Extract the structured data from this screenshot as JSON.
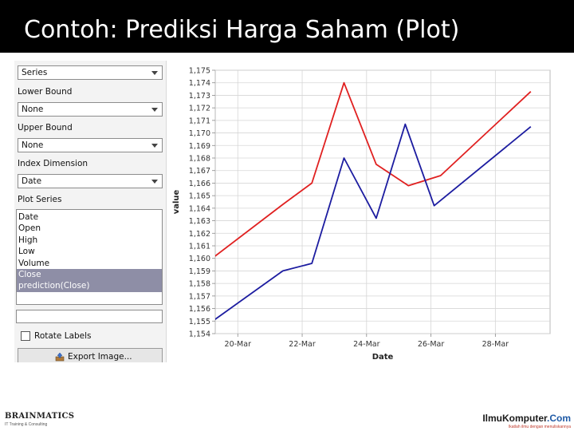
{
  "slide": {
    "title": "Contoh: Prediksi Harga Saham (Plot)"
  },
  "panel": {
    "top_dropdown": {
      "value": "Series"
    },
    "lower_bound": {
      "label": "Lower Bound",
      "value": "None"
    },
    "upper_bound": {
      "label": "Upper Bound",
      "value": "None"
    },
    "index_dimension": {
      "label": "Index Dimension",
      "value": "Date"
    },
    "plot_series": {
      "label": "Plot Series",
      "items": [
        "Date",
        "Open",
        "High",
        "Low",
        "Volume",
        "Close",
        "prediction(Close)"
      ],
      "selected": [
        5,
        6
      ]
    },
    "rotate_labels": {
      "label": "Rotate Labels",
      "checked": false
    },
    "export_button": {
      "label": "Export Image..."
    }
  },
  "chart_data": {
    "type": "line",
    "xlabel": "Date",
    "ylabel": "value",
    "x_ticks": [
      "20-Mar",
      "22-Mar",
      "24-Mar",
      "26-Mar",
      "28-Mar"
    ],
    "y_ticks": [
      "1,154",
      "1,155",
      "1,156",
      "1,157",
      "1,158",
      "1,159",
      "1,160",
      "1,161",
      "1,162",
      "1,163",
      "1,164",
      "1,165",
      "1,166",
      "1,167",
      "1,168",
      "1,169",
      "1,170",
      "1,171",
      "1,172",
      "1,173",
      "1,174",
      "1,175"
    ],
    "ylim": [
      1154,
      1175
    ],
    "xlim": [
      19.3,
      29.7
    ],
    "grid": true,
    "series": [
      {
        "color": "#e02020",
        "x": [
          19.0,
          21.4,
          22.3,
          23.3,
          24.3,
          25.3,
          26.3,
          29.1
        ],
        "y": [
          1159.6,
          1164.3,
          1166.0,
          1174.0,
          1167.5,
          1165.8,
          1166.6,
          1173.3
        ]
      },
      {
        "color": "#1c1ca0",
        "x": [
          19.0,
          21.4,
          22.3,
          23.3,
          24.3,
          25.2,
          26.1,
          29.1
        ],
        "y": [
          1154.6,
          1159.0,
          1159.6,
          1168.0,
          1163.2,
          1170.7,
          1164.2,
          1170.5
        ]
      }
    ]
  },
  "footer": {
    "left_logo": {
      "name": "BRAINMATICS",
      "tagline": "IT Training & Consulting"
    },
    "right_logo": {
      "name": "IlmuKomputer",
      "suffix": ".Com",
      "tagline": "Ikatlah ilmu dengan menuliskannya"
    }
  }
}
